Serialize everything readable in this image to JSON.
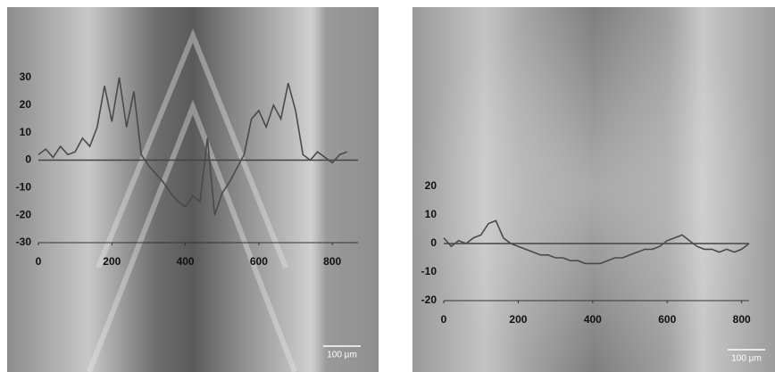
{
  "chart_data": [
    {
      "type": "line",
      "scale_label": "100 µm",
      "x": [
        0,
        20,
        40,
        60,
        80,
        100,
        120,
        140,
        160,
        180,
        200,
        220,
        240,
        260,
        280,
        300,
        320,
        340,
        360,
        380,
        400,
        420,
        440,
        460,
        480,
        500,
        520,
        540,
        560,
        580,
        600,
        620,
        640,
        660,
        680,
        700,
        720,
        740,
        760,
        780,
        800,
        820,
        840
      ],
      "series": [
        {
          "color": "#4a4a4a",
          "values": [
            2,
            4,
            1,
            5,
            2,
            3,
            8,
            5,
            12,
            27,
            14,
            30,
            12,
            25,
            2,
            -2,
            -5,
            -8,
            -12,
            -15,
            -17,
            -13,
            -15,
            8,
            -20,
            -12,
            -8,
            -3,
            2,
            15,
            18,
            12,
            20,
            15,
            28,
            18,
            2,
            0,
            3,
            1,
            -1,
            2,
            3
          ]
        }
      ],
      "xlim": [
        0,
        870
      ],
      "ylim": [
        -30,
        30
      ],
      "xticks": [
        0,
        200,
        400,
        600,
        800
      ],
      "yticks": [
        -30,
        -20,
        -10,
        0,
        10,
        20,
        30
      ]
    },
    {
      "type": "line",
      "scale_label": "100 µm",
      "x": [
        0,
        20,
        40,
        60,
        80,
        100,
        120,
        140,
        160,
        180,
        200,
        220,
        240,
        260,
        280,
        300,
        320,
        340,
        360,
        380,
        400,
        420,
        440,
        460,
        480,
        500,
        520,
        540,
        560,
        580,
        600,
        620,
        640,
        660,
        680,
        700,
        720,
        740,
        760,
        780,
        800,
        820
      ],
      "series": [
        {
          "color": "#4a4a4a",
          "values": [
            2,
            -1,
            1,
            0,
            2,
            3,
            7,
            8,
            2,
            0,
            -1,
            -2,
            -3,
            -4,
            -4,
            -5,
            -5,
            -6,
            -6,
            -7,
            -7,
            -7,
            -6,
            -5,
            -5,
            -4,
            -3,
            -2,
            -2,
            -1,
            1,
            2,
            3,
            1,
            -1,
            -2,
            -2,
            -3,
            -2,
            -3,
            -2,
            0
          ]
        }
      ],
      "xlim": [
        0,
        820
      ],
      "ylim": [
        -20,
        20
      ],
      "xticks": [
        0,
        200,
        400,
        600,
        800
      ],
      "yticks": [
        -20,
        -10,
        0,
        10,
        20
      ]
    }
  ]
}
